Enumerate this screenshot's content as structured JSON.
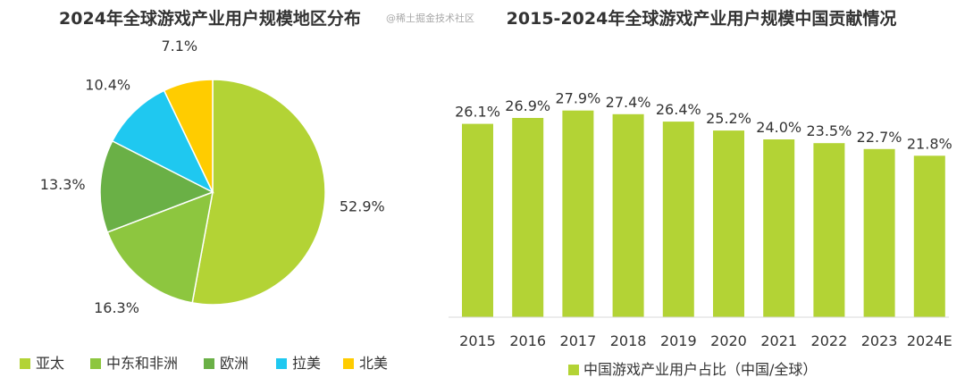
{
  "colors": {
    "apac": "#B3D335",
    "mea": "#8DC63F",
    "europe": "#6AB046",
    "latam": "#1FC8F0",
    "na": "#FFCC00",
    "bar": "#B3D335",
    "text": "#333333"
  },
  "watermark": "@稀土掘金技术社区",
  "chart_data": [
    {
      "type": "pie",
      "title": "2024年全球游戏产业用户规模地区分布",
      "labels": [
        "亚太",
        "中东和非洲",
        "欧洲",
        "拉美",
        "北美"
      ],
      "values": [
        52.9,
        16.3,
        13.3,
        10.4,
        7.1
      ],
      "value_labels": [
        "52.9%",
        "16.3%",
        "13.3%",
        "10.4%",
        "7.1%"
      ],
      "unit": "%",
      "legend_position": "bottom"
    },
    {
      "type": "bar",
      "title": "2015-2024年全球游戏产业用户规模中国贡献情况",
      "categories": [
        "2015",
        "2016",
        "2017",
        "2018",
        "2019",
        "2020",
        "2021",
        "2022",
        "2023",
        "2024E"
      ],
      "series": [
        {
          "name": "中国游戏产业用户占比（中国/全球）",
          "values": [
            26.1,
            26.9,
            27.9,
            27.4,
            26.4,
            25.2,
            24.0,
            23.5,
            22.7,
            21.8
          ],
          "value_labels": [
            "26.1%",
            "26.9%",
            "27.9%",
            "27.4%",
            "26.4%",
            "25.2%",
            "24.0%",
            "23.5%",
            "22.7%",
            "21.8%"
          ]
        }
      ],
      "ylim": [
        0,
        29.55
      ],
      "grid": false,
      "legend_position": "bottom"
    }
  ]
}
